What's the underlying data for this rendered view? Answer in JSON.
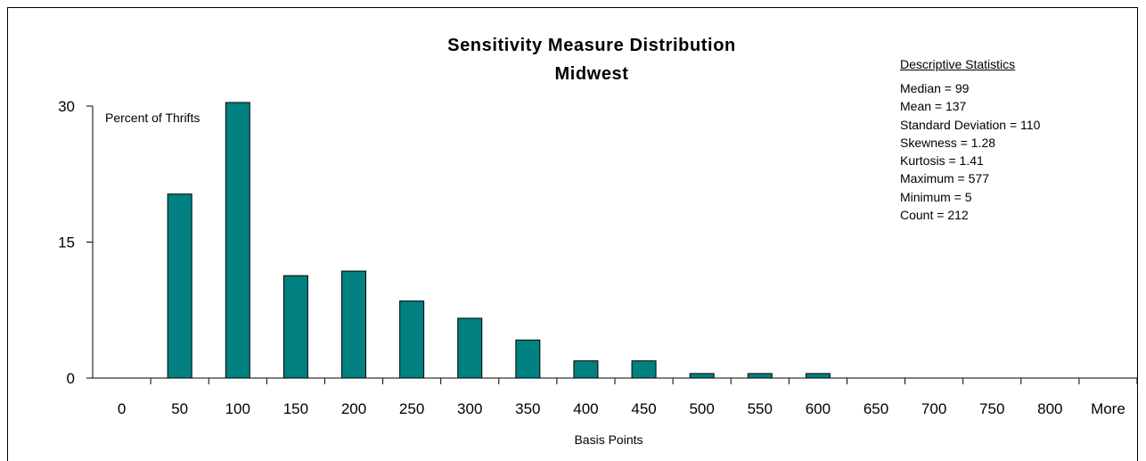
{
  "chart_data": {
    "type": "bar",
    "title": "Sensitivity Measure Distribution",
    "subtitle": "Midwest",
    "xlabel": "Basis Points",
    "ylabel": "Percent of Thrifts",
    "categories": [
      "0",
      "50",
      "100",
      "150",
      "200",
      "250",
      "300",
      "350",
      "400",
      "450",
      "500",
      "550",
      "600",
      "650",
      "700",
      "750",
      "800",
      "More"
    ],
    "values": [
      0,
      20.3,
      30.4,
      11.3,
      11.8,
      8.5,
      6.6,
      4.2,
      1.9,
      1.9,
      0.5,
      0.5,
      0.5,
      0,
      0,
      0,
      0,
      0
    ],
    "yticks": [
      0,
      15,
      30
    ],
    "ylim": [
      0,
      30
    ],
    "bar_color": "#008080",
    "grid": false,
    "legend": "none"
  },
  "stats": {
    "header": "Descriptive Statistics",
    "items": [
      "Median = 99",
      "Mean = 137",
      "Standard Deviation = 110",
      "Skewness = 1.28",
      "Kurtosis = 1.41",
      "Maximum = 577",
      "Minimum = 5",
      "Count = 212"
    ]
  }
}
